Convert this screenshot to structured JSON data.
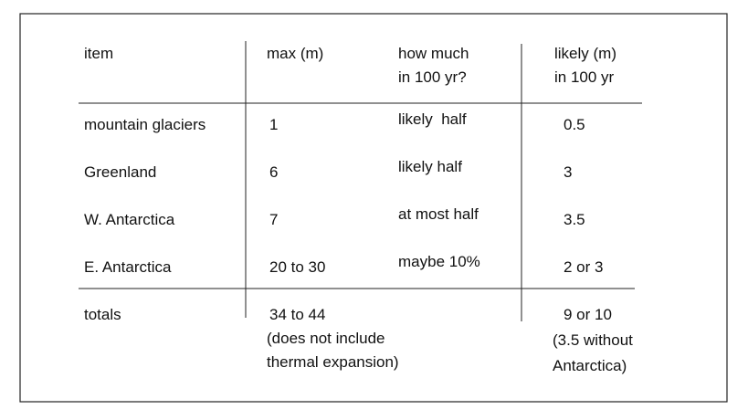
{
  "table": {
    "header": [
      [
        "item"
      ],
      [
        "max (m)"
      ],
      [
        "how much",
        "in 100 yr?"
      ],
      [
        "likely (m)",
        "in 100 yr"
      ]
    ],
    "rows": [
      [
        "mountain glaciers",
        "1",
        "likely  half",
        "0.5"
      ],
      [
        "Greenland",
        "6",
        "likely half",
        "3"
      ],
      [
        "W. Antarctica",
        "7",
        "at most half",
        "3.5"
      ],
      [
        "E. Antarctica",
        "20 to 30",
        "maybe 10%",
        "2 or 3"
      ]
    ],
    "totals": {
      "label": "totals",
      "max": [
        "34 to 44",
        "(does not include",
        "thermal expansion)"
      ],
      "likely": [
        "9 or 10",
        "(3.5 without",
        "Antarctica)"
      ]
    }
  }
}
